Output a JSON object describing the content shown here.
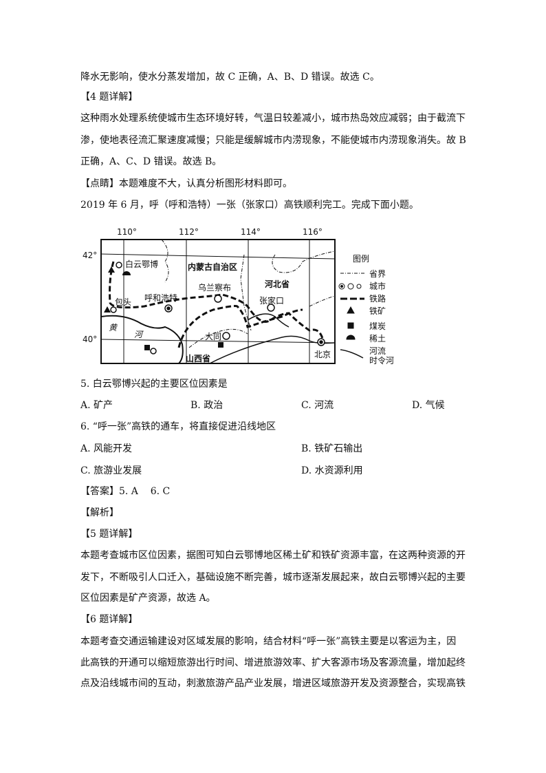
{
  "lines_top": [
    "降水无影响，使水分蒸发增加，故 C 正确，A、B、D 错误。故选 C。",
    "【4 题详解】",
    "这种雨水处理系统使城市生态环境好转，气温日较差减小，城市热岛效应减弱；由于截流下",
    "渗，使地表径流汇聚速度减慢；只能是缓解城市内涝现象，不能使城市内涝现象消失。故 B",
    "正确，A、C、D 错误。故选 B。",
    "【点睛】本题难度不大，认真分析图形材料即可。",
    "2019 年 6 月，呼（呼和浩特）一张（张家口）高铁顺利完工。完成下面小题。"
  ],
  "map": {
    "lon_labels": [
      "110°",
      "112°",
      "114°",
      "116°"
    ],
    "lat_labels": [
      "42°",
      "40°"
    ],
    "places": {
      "baiyunebo": "白云鄂博",
      "neimenggu": "内蒙古自治区",
      "wulanchabu": "乌兰察布",
      "hebei": "河北省",
      "baotou": "包头",
      "huhehaote": "呼和浩特",
      "zhangjiakou": "张家口",
      "datong": "大同",
      "shanxi": "山西省",
      "beijing": "北京",
      "huang": "黄",
      "he": "河"
    },
    "legend": {
      "title": "图例",
      "items": [
        "省界",
        "城市",
        "铁路",
        "铁矿",
        "煤炭",
        "稀土",
        "河流",
        "时令河"
      ]
    }
  },
  "q5": {
    "stem": "5. 白云鄂博兴起的主要区位因素是",
    "options": [
      "A. 矿产",
      "B. 政治",
      "C. 河流",
      "D. 气候"
    ]
  },
  "q6": {
    "stem": "6. “呼一张”高铁的通车，将直接促进沿线地区",
    "options": [
      "A. 风能开发",
      "B. 铁矿石输出",
      "C. 旅游业发展",
      "D. 水资源利用"
    ]
  },
  "lines_bottom": [
    "【答案】5. A    6. C",
    "【解析】",
    "【5 题详解】",
    "本题考查城市区位因素，据图可知白云鄂博地区稀土矿和铁矿资源丰富，在这两种资源的开",
    "发下，不断吸引人口迁入，基础设施不断完善，城市逐渐发展起来，故白云鄂博兴起的主要",
    "区位因素是矿产资源，故选 A。",
    "【6 题详解】",
    "本题考查交通运输建设对区域发展的影响，结合材料“呼一张”高铁主要是以客运为主，因",
    "此高铁的开通可以缩短旅游出行时间、增进旅游效率、扩大客源市场及客源流量，增加起终",
    "点及沿线城市间的互动，刺激旅游产品产业发展，增进区域旅游开发及资源整合，实现高铁"
  ]
}
